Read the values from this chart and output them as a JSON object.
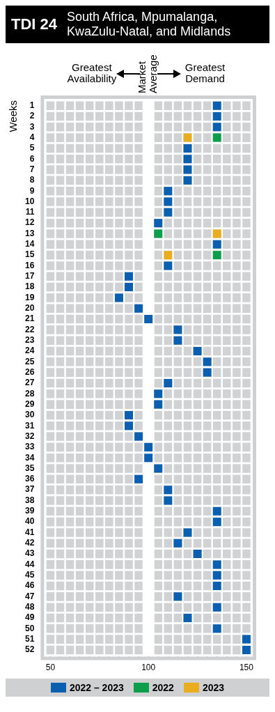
{
  "chart_data": {
    "type": "scatter",
    "title": "TDI 24",
    "subtitle": "South Africa, Mpumalanga, KwaZulu-Natal, and Midlands",
    "ylabel": "Weeks",
    "annotations": [
      "Greatest Availability",
      "Greatest Demand"
    ],
    "categories": [
      "1",
      "2",
      "3",
      "4",
      "5",
      "6",
      "7",
      "8",
      "9",
      "10",
      "11",
      "12",
      "13",
      "14",
      "15",
      "16",
      "17",
      "18",
      "19",
      "20",
      "21",
      "22",
      "23",
      "24",
      "25",
      "26",
      "27",
      "28",
      "29",
      "30",
      "31",
      "32",
      "33",
      "34",
      "35",
      "36",
      "37",
      "38",
      "39",
      "40",
      "41",
      "42",
      "43",
      "44",
      "45",
      "46",
      "47",
      "48",
      "49",
      "50",
      "51",
      "52"
    ],
    "orientation": "horizontal",
    "xlim": [
      47.5,
      152.5
    ],
    "xticks": [
      50,
      {
        "value": 55,
        "label": null
      },
      {
        "value": 60,
        "label": null
      },
      {
        "value": 65,
        "label": null
      },
      {
        "value": 70,
        "label": null
      },
      {
        "value": 75,
        "label": null
      },
      {
        "value": 80,
        "label": null
      },
      {
        "value": 85,
        "label": null
      },
      {
        "value": 90,
        "label": null
      },
      {
        "value": 95,
        "label": null
      },
      100,
      {
        "value": 105,
        "label": null
      },
      {
        "value": 110,
        "label": null
      },
      {
        "value": 115,
        "label": null
      },
      {
        "value": 120,
        "label": null
      },
      {
        "value": 125,
        "label": null
      },
      {
        "value": 130,
        "label": null
      },
      {
        "value": 135,
        "label": null
      },
      {
        "value": 140,
        "label": null
      },
      {
        "value": 145,
        "label": null
      },
      150
    ],
    "series": [
      {
        "name": "2022 – 2023",
        "color": "#0a5fb0",
        "values": [
          135,
          135,
          135,
          null,
          120,
          120,
          120,
          120,
          110,
          110,
          110,
          105,
          null,
          135,
          null,
          110,
          90,
          90,
          85,
          95,
          100,
          115,
          115,
          125,
          130,
          130,
          110,
          105,
          105,
          90,
          90,
          95,
          100,
          100,
          105,
          95,
          110,
          110,
          135,
          135,
          120,
          115,
          125,
          135,
          135,
          135,
          115,
          135,
          120,
          135,
          150,
          150
        ]
      },
      {
        "name": "2022",
        "color": "#0c9e4a",
        "values": [
          null,
          null,
          null,
          135,
          null,
          null,
          null,
          null,
          null,
          null,
          null,
          null,
          105,
          null,
          135,
          null,
          null,
          null,
          null,
          null,
          null,
          null,
          null,
          null,
          null,
          null,
          null,
          null,
          null,
          null,
          null,
          null,
          null,
          null,
          null,
          null,
          null,
          null,
          null,
          null,
          null,
          null,
          null,
          null,
          null,
          null,
          null,
          null,
          null,
          null,
          null,
          null
        ]
      },
      {
        "name": "2023",
        "color": "#e9ad1f",
        "values": [
          null,
          null,
          null,
          120,
          null,
          null,
          null,
          null,
          null,
          null,
          null,
          null,
          135,
          null,
          110,
          null,
          null,
          null,
          null,
          null,
          null,
          null,
          null,
          null,
          null,
          null,
          null,
          null,
          null,
          null,
          null,
          null,
          null,
          null,
          null,
          null,
          null,
          null,
          null,
          null,
          null,
          null,
          null,
          null,
          null,
          null,
          null,
          null,
          null,
          null,
          null,
          null
        ]
      }
    ],
    "ref_lines": [
      {
        "axis": "x",
        "value": 100,
        "label": "Market Average",
        "color": "#ffffff"
      }
    ],
    "legend": "bottom",
    "marker": "square"
  }
}
